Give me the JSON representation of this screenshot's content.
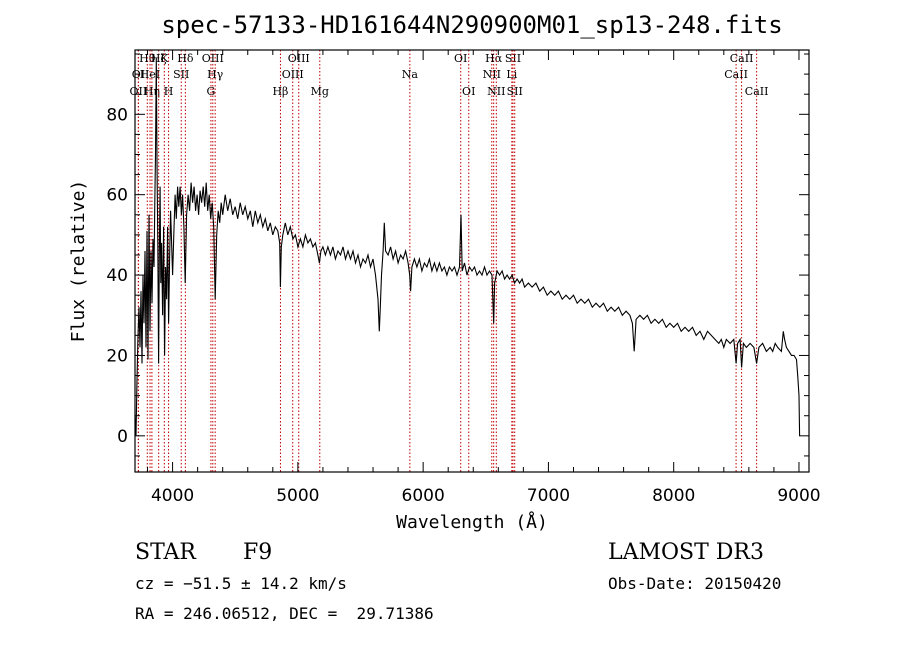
{
  "chart_data": {
    "type": "line",
    "title": "spec-57133-HD161644N290900M01_sp13-248.fits",
    "xlabel": "Wavelength (Å)",
    "ylabel": "Flux (relative)",
    "xlim": [
      3700,
      9080
    ],
    "ylim": [
      -9,
      96
    ],
    "xticks": [
      4000,
      5000,
      6000,
      7000,
      8000,
      9000
    ],
    "yticks": [
      0,
      20,
      40,
      60,
      80
    ],
    "x_minor_step": 200,
    "y_minor_step": 5,
    "series": [
      {
        "name": "spectrum",
        "points": [
          [
            3700,
            5
          ],
          [
            3708,
            0
          ],
          [
            3716,
            14
          ],
          [
            3724,
            25
          ],
          [
            3732,
            32
          ],
          [
            3740,
            22
          ],
          [
            3748,
            36
          ],
          [
            3756,
            18
          ],
          [
            3764,
            40
          ],
          [
            3772,
            28
          ],
          [
            3780,
            46
          ],
          [
            3788,
            22
          ],
          [
            3796,
            51
          ],
          [
            3804,
            19
          ],
          [
            3812,
            55
          ],
          [
            3820,
            26
          ],
          [
            3828,
            46
          ],
          [
            3836,
            33
          ],
          [
            3844,
            49
          ],
          [
            3852,
            42
          ],
          [
            3858,
            58
          ],
          [
            3864,
            70
          ],
          [
            3870,
            94
          ],
          [
            3876,
            68
          ],
          [
            3882,
            48
          ],
          [
            3888,
            18
          ],
          [
            3894,
            45
          ],
          [
            3900,
            62
          ],
          [
            3906,
            38
          ],
          [
            3912,
            48
          ],
          [
            3920,
            30
          ],
          [
            3928,
            52
          ],
          [
            3936,
            20
          ],
          [
            3944,
            42
          ],
          [
            3952,
            34
          ],
          [
            3960,
            52
          ],
          [
            3968,
            28
          ],
          [
            3976,
            44
          ],
          [
            3984,
            56
          ],
          [
            3992,
            48
          ],
          [
            4000,
            40
          ],
          [
            4010,
            50
          ],
          [
            4020,
            60
          ],
          [
            4030,
            54
          ],
          [
            4040,
            62
          ],
          [
            4050,
            57
          ],
          [
            4060,
            62
          ],
          [
            4070,
            55
          ],
          [
            4080,
            60
          ],
          [
            4090,
            52
          ],
          [
            4101,
            38
          ],
          [
            4112,
            55
          ],
          [
            4124,
            60
          ],
          [
            4136,
            56
          ],
          [
            4148,
            63
          ],
          [
            4160,
            58
          ],
          [
            4172,
            62
          ],
          [
            4184,
            56
          ],
          [
            4196,
            60
          ],
          [
            4208,
            55
          ],
          [
            4220,
            61
          ],
          [
            4232,
            58
          ],
          [
            4244,
            62
          ],
          [
            4256,
            57
          ],
          [
            4268,
            63
          ],
          [
            4280,
            56
          ],
          [
            4292,
            60
          ],
          [
            4304,
            54
          ],
          [
            4316,
            58
          ],
          [
            4328,
            52
          ],
          [
            4340,
            34
          ],
          [
            4352,
            50
          ],
          [
            4364,
            56
          ],
          [
            4376,
            53
          ],
          [
            4388,
            58
          ],
          [
            4400,
            55
          ],
          [
            4420,
            60
          ],
          [
            4440,
            56
          ],
          [
            4460,
            59
          ],
          [
            4480,
            55
          ],
          [
            4500,
            57
          ],
          [
            4520,
            54
          ],
          [
            4540,
            58
          ],
          [
            4560,
            55
          ],
          [
            4580,
            57
          ],
          [
            4600,
            54
          ],
          [
            4620,
            56
          ],
          [
            4640,
            52
          ],
          [
            4660,
            56
          ],
          [
            4680,
            53
          ],
          [
            4700,
            55
          ],
          [
            4720,
            52
          ],
          [
            4740,
            54
          ],
          [
            4760,
            51
          ],
          [
            4780,
            53
          ],
          [
            4800,
            50
          ],
          [
            4820,
            52
          ],
          [
            4840,
            51
          ],
          [
            4855,
            48
          ],
          [
            4861,
            37
          ],
          [
            4868,
            47
          ],
          [
            4880,
            50
          ],
          [
            4900,
            53
          ],
          [
            4920,
            50
          ],
          [
            4940,
            52
          ],
          [
            4960,
            49
          ],
          [
            4980,
            50
          ],
          [
            5000,
            47
          ],
          [
            5020,
            49
          ],
          [
            5040,
            47
          ],
          [
            5060,
            50
          ],
          [
            5080,
            48
          ],
          [
            5100,
            49
          ],
          [
            5120,
            47
          ],
          [
            5140,
            48
          ],
          [
            5160,
            45
          ],
          [
            5172,
            43
          ],
          [
            5184,
            46
          ],
          [
            5200,
            47
          ],
          [
            5220,
            45
          ],
          [
            5240,
            47
          ],
          [
            5260,
            45
          ],
          [
            5280,
            47
          ],
          [
            5300,
            44
          ],
          [
            5320,
            46
          ],
          [
            5340,
            45
          ],
          [
            5360,
            47
          ],
          [
            5380,
            44
          ],
          [
            5400,
            46
          ],
          [
            5420,
            44
          ],
          [
            5440,
            46
          ],
          [
            5460,
            43
          ],
          [
            5480,
            45
          ],
          [
            5500,
            42
          ],
          [
            5520,
            44
          ],
          [
            5540,
            43
          ],
          [
            5560,
            45
          ],
          [
            5580,
            42
          ],
          [
            5600,
            44
          ],
          [
            5620,
            40
          ],
          [
            5640,
            34
          ],
          [
            5650,
            26
          ],
          [
            5658,
            32
          ],
          [
            5668,
            40
          ],
          [
            5680,
            46
          ],
          [
            5690,
            53
          ],
          [
            5700,
            46
          ],
          [
            5720,
            45
          ],
          [
            5740,
            47
          ],
          [
            5760,
            44
          ],
          [
            5780,
            46
          ],
          [
            5800,
            43
          ],
          [
            5820,
            45
          ],
          [
            5840,
            44
          ],
          [
            5860,
            46
          ],
          [
            5880,
            43
          ],
          [
            5893,
            40
          ],
          [
            5900,
            36
          ],
          [
            5910,
            42
          ],
          [
            5930,
            44
          ],
          [
            5950,
            42
          ],
          [
            5970,
            44
          ],
          [
            5990,
            41
          ],
          [
            6010,
            43
          ],
          [
            6030,
            42
          ],
          [
            6050,
            44
          ],
          [
            6070,
            41
          ],
          [
            6090,
            43
          ],
          [
            6110,
            41
          ],
          [
            6130,
            43
          ],
          [
            6150,
            41
          ],
          [
            6170,
            42
          ],
          [
            6190,
            40
          ],
          [
            6210,
            42
          ],
          [
            6230,
            41
          ],
          [
            6250,
            42
          ],
          [
            6270,
            40
          ],
          [
            6290,
            42
          ],
          [
            6302,
            55
          ],
          [
            6312,
            41
          ],
          [
            6330,
            43
          ],
          [
            6350,
            40
          ],
          [
            6370,
            42
          ],
          [
            6390,
            41
          ],
          [
            6410,
            42
          ],
          [
            6430,
            40
          ],
          [
            6450,
            41
          ],
          [
            6470,
            40
          ],
          [
            6490,
            42
          ],
          [
            6510,
            40
          ],
          [
            6530,
            41
          ],
          [
            6550,
            40
          ],
          [
            6563,
            28
          ],
          [
            6570,
            38
          ],
          [
            6590,
            41
          ],
          [
            6610,
            40
          ],
          [
            6630,
            41
          ],
          [
            6650,
            39
          ],
          [
            6670,
            40
          ],
          [
            6690,
            39
          ],
          [
            6710,
            40
          ],
          [
            6730,
            38
          ],
          [
            6750,
            39
          ],
          [
            6770,
            38
          ],
          [
            6790,
            39
          ],
          [
            6810,
            37
          ],
          [
            6840,
            38
          ],
          [
            6870,
            37
          ],
          [
            6900,
            38
          ],
          [
            6930,
            36
          ],
          [
            6960,
            37
          ],
          [
            6990,
            35
          ],
          [
            7020,
            36
          ],
          [
            7050,
            35
          ],
          [
            7080,
            36
          ],
          [
            7110,
            34
          ],
          [
            7140,
            35
          ],
          [
            7170,
            34
          ],
          [
            7200,
            35
          ],
          [
            7230,
            33
          ],
          [
            7260,
            34
          ],
          [
            7290,
            33
          ],
          [
            7320,
            34
          ],
          [
            7350,
            32
          ],
          [
            7380,
            33
          ],
          [
            7410,
            32
          ],
          [
            7440,
            33
          ],
          [
            7470,
            31
          ],
          [
            7500,
            32
          ],
          [
            7530,
            31
          ],
          [
            7560,
            32
          ],
          [
            7590,
            30
          ],
          [
            7620,
            31
          ],
          [
            7650,
            30
          ],
          [
            7670,
            28
          ],
          [
            7685,
            21
          ],
          [
            7700,
            29
          ],
          [
            7730,
            30
          ],
          [
            7760,
            29
          ],
          [
            7790,
            30
          ],
          [
            7820,
            28
          ],
          [
            7850,
            29
          ],
          [
            7880,
            28
          ],
          [
            7910,
            29
          ],
          [
            7940,
            27
          ],
          [
            7970,
            28
          ],
          [
            8000,
            27
          ],
          [
            8030,
            28
          ],
          [
            8060,
            26
          ],
          [
            8090,
            27
          ],
          [
            8120,
            26
          ],
          [
            8150,
            27
          ],
          [
            8180,
            25
          ],
          [
            8210,
            26
          ],
          [
            8240,
            24
          ],
          [
            8270,
            26
          ],
          [
            8300,
            25
          ],
          [
            8330,
            24
          ],
          [
            8360,
            23
          ],
          [
            8380,
            24
          ],
          [
            8400,
            22
          ],
          [
            8420,
            24
          ],
          [
            8450,
            23
          ],
          [
            8480,
            24
          ],
          [
            8498,
            18
          ],
          [
            8510,
            23
          ],
          [
            8530,
            24
          ],
          [
            8542,
            17
          ],
          [
            8556,
            23
          ],
          [
            8580,
            22
          ],
          [
            8610,
            23
          ],
          [
            8640,
            22
          ],
          [
            8662,
            18
          ],
          [
            8680,
            22
          ],
          [
            8710,
            23
          ],
          [
            8740,
            21
          ],
          [
            8770,
            22
          ],
          [
            8790,
            21
          ],
          [
            8810,
            23
          ],
          [
            8830,
            22
          ],
          [
            8860,
            21
          ],
          [
            8875,
            26
          ],
          [
            8885,
            24
          ],
          [
            8900,
            22
          ],
          [
            8920,
            21
          ],
          [
            8940,
            20
          ],
          [
            8960,
            20
          ],
          [
            8980,
            19
          ],
          [
            8990,
            15
          ],
          [
            9000,
            10
          ],
          [
            9005,
            0
          ]
        ]
      }
    ],
    "line_markers": [
      {
        "label": "OII",
        "wave": 3727,
        "row": 3
      },
      {
        "label": "OI",
        "wave": 3727,
        "row": 2
      },
      {
        "label": "Hθ",
        "wave": 3798,
        "row": 1
      },
      {
        "label": "Hη",
        "wave": 3835,
        "row": 3
      },
      {
        "label": "HeI",
        "wave": 3820,
        "row": 2
      },
      {
        "label": "Hζ",
        "wave": 3889,
        "row": 1
      },
      {
        "label": "K",
        "wave": 3934,
        "row": 1
      },
      {
        "label": "H",
        "wave": 3968,
        "row": 3
      },
      {
        "label": "SII",
        "wave": 4069,
        "row": 2
      },
      {
        "label": "Hδ",
        "wave": 4102,
        "row": 1
      },
      {
        "label": "G",
        "wave": 4306,
        "row": 3
      },
      {
        "label": "OIII",
        "wave": 4321,
        "row": 1
      },
      {
        "label": "Hγ",
        "wave": 4340,
        "row": 2
      },
      {
        "label": "Hβ",
        "wave": 4861,
        "row": 3
      },
      {
        "label": "OIII",
        "wave": 4959,
        "row": 2
      },
      {
        "label": "OIII",
        "wave": 5007,
        "row": 1
      },
      {
        "label": "Mg",
        "wave": 5175,
        "row": 3
      },
      {
        "label": "Na",
        "wave": 5894,
        "row": 2
      },
      {
        "label": "OI",
        "wave": 6300,
        "row": 1
      },
      {
        "label": "OI",
        "wave": 6364,
        "row": 3
      },
      {
        "label": "NII",
        "wave": 6548,
        "row": 2
      },
      {
        "label": "Hα",
        "wave": 6563,
        "row": 1
      },
      {
        "label": "NII",
        "wave": 6584,
        "row": 3
      },
      {
        "label": "Li",
        "wave": 6708,
        "row": 2
      },
      {
        "label": "SII",
        "wave": 6717,
        "row": 1
      },
      {
        "label": "SII",
        "wave": 6731,
        "row": 3
      },
      {
        "label": "CaII",
        "wave": 8498,
        "row": 2
      },
      {
        "label": "CaII",
        "wave": 8542,
        "row": 1
      },
      {
        "label": "CaII",
        "wave": 8662,
        "row": 3
      }
    ]
  },
  "info": {
    "object_class": "STAR",
    "subclass": "F9",
    "survey": "LAMOST DR3",
    "redshift": "cz = −51.5 ± 14.2 km/s",
    "obs_date": "Obs-Date: 20150420",
    "coords": "RA = 246.06512, DEC =  29.71386"
  }
}
